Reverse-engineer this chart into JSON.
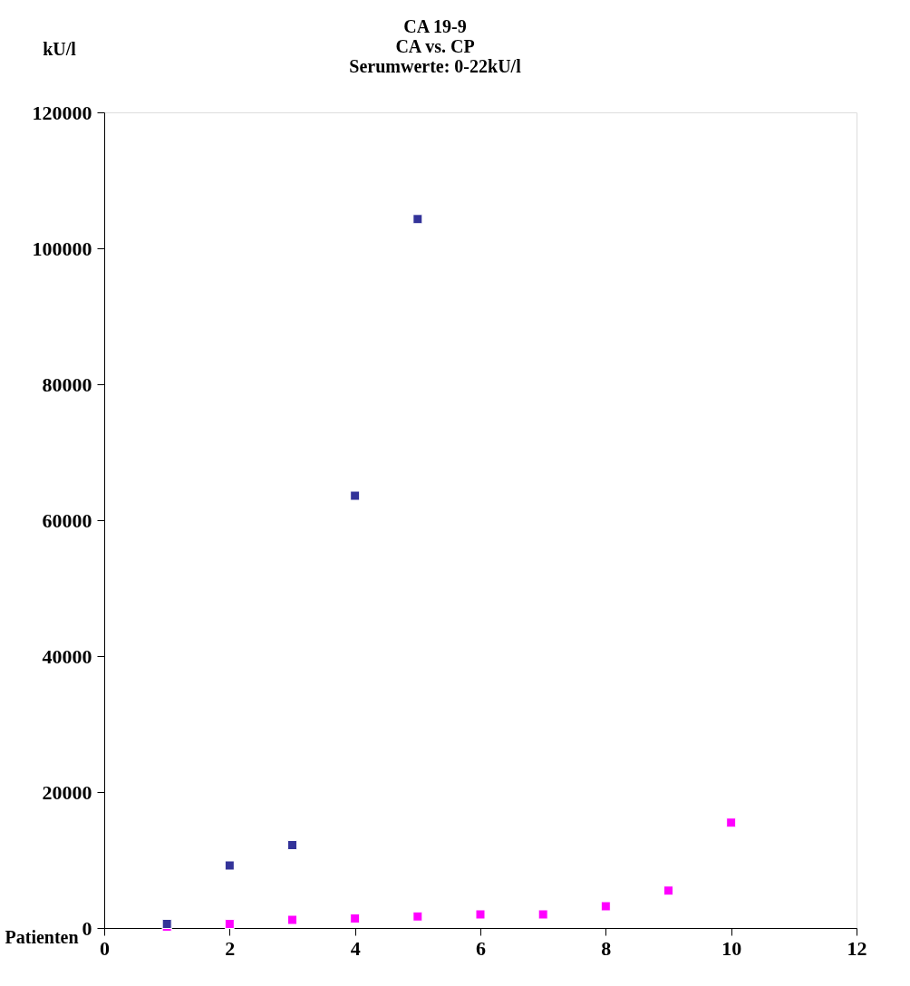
{
  "chart_data": {
    "type": "scatter",
    "title": [
      "CA 19-9",
      "CA vs. CP",
      "Serumwerte: 0-22kU/l"
    ],
    "ylabel": "kU/l",
    "xlabel": "Patienten",
    "xlim": [
      0,
      12
    ],
    "xticks": [
      0,
      2,
      4,
      6,
      8,
      10,
      12
    ],
    "ylim": [
      0,
      120000
    ],
    "yticks": [
      0,
      20000,
      40000,
      60000,
      80000,
      100000,
      120000
    ],
    "grid": false,
    "marker": "square",
    "series": [
      {
        "color": "#333399",
        "x": [
          1,
          2,
          3,
          4,
          5
        ],
        "values": [
          600,
          9200,
          12200,
          63600,
          104300
        ]
      },
      {
        "color": "#ff00ff",
        "x": [
          1,
          2,
          3,
          4,
          5,
          6,
          7,
          8,
          9,
          10
        ],
        "values": [
          200,
          600,
          1200,
          1400,
          1700,
          2000,
          2000,
          3200,
          5500,
          15500
        ]
      }
    ]
  }
}
